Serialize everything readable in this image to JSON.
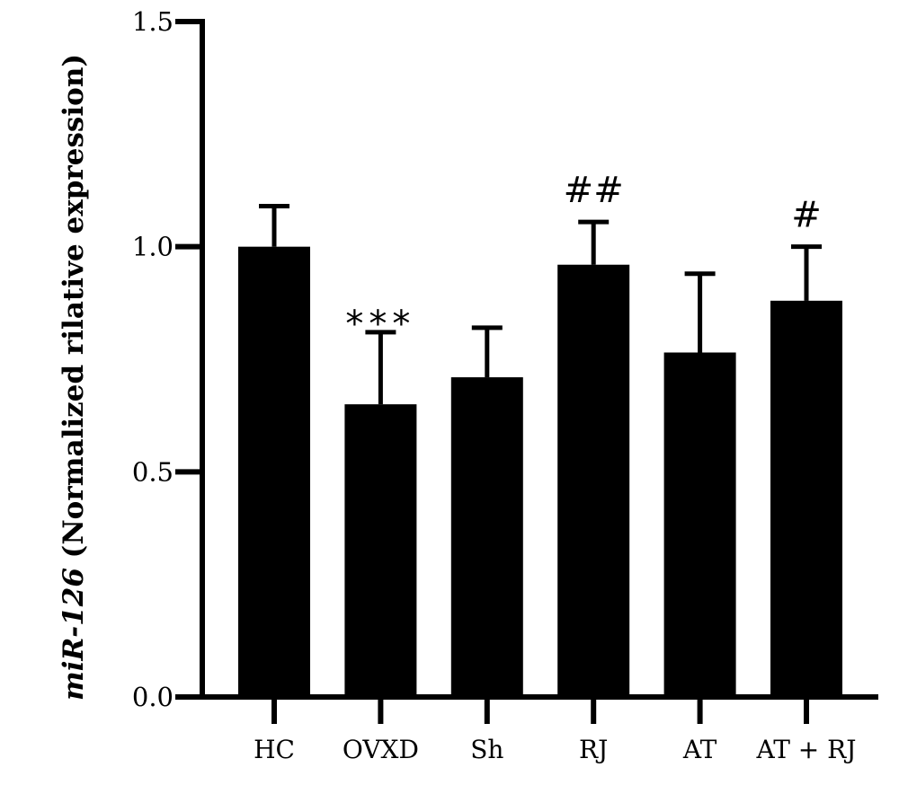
{
  "chart_data": {
    "type": "bar",
    "categories": [
      "HC",
      "OVXD",
      "Sh",
      "RJ",
      "AT",
      "AT + RJ"
    ],
    "values": [
      1.0,
      0.65,
      0.71,
      0.96,
      0.765,
      0.88
    ],
    "errors": [
      0.09,
      0.16,
      0.11,
      0.095,
      0.175,
      0.12
    ],
    "annotations": [
      "",
      "***",
      "",
      "##",
      "",
      "#"
    ],
    "ylabel": {
      "prefix": "miR-126",
      "suffix": " (Normalized rilative expression)"
    },
    "xlabel": "",
    "title": "",
    "ylim": [
      0,
      1.5
    ],
    "yticks": [
      {
        "value": 0.0,
        "label": "0.0"
      },
      {
        "value": 0.5,
        "label": "0.5"
      },
      {
        "value": 1.0,
        "label": "1.0"
      },
      {
        "value": 1.5,
        "label": "1.5"
      }
    ],
    "grid": false,
    "bar_color": "#000000"
  }
}
